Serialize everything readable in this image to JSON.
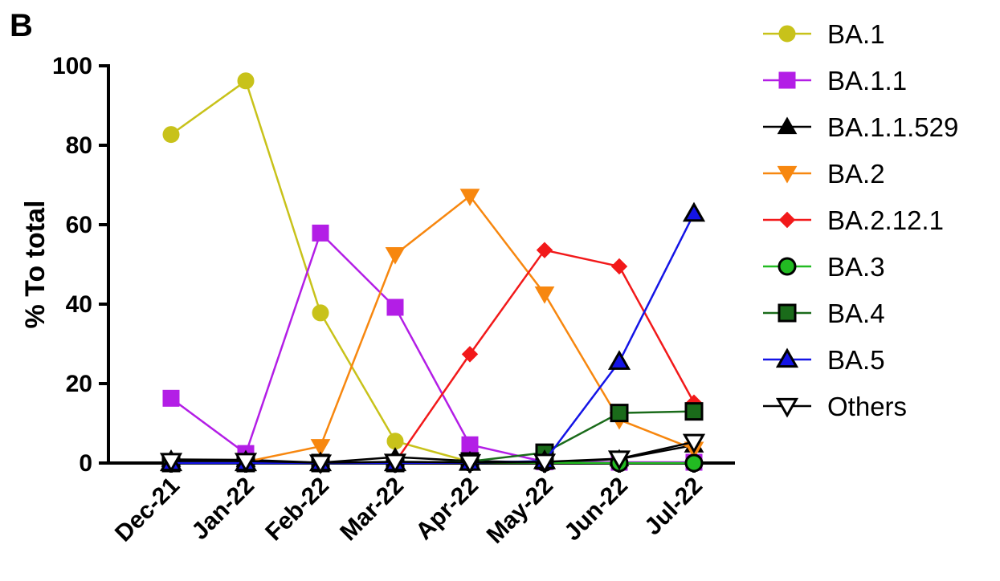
{
  "panel_label": "B",
  "chart_data": {
    "type": "line",
    "ylabel": "% To total",
    "xlabel": "",
    "ylim": [
      0,
      100
    ],
    "yticks": [
      0,
      20,
      40,
      60,
      80,
      100
    ],
    "categories": [
      "Dec-21",
      "Jan-22",
      "Feb-22",
      "Mar-22",
      "Apr-22",
      "May-22",
      "Jun-22",
      "Jul-22"
    ],
    "legend_position": "right",
    "series": [
      {
        "name": "BA.1",
        "color": "#c8c21a",
        "marker": "circle",
        "marker_fill": "#c8c21a",
        "marker_stroke": "#c8c21a",
        "values": [
          82.7,
          96.2,
          37.8,
          5.5,
          0.3,
          0.1,
          0.1,
          0.1
        ]
      },
      {
        "name": "BA.1.1",
        "color": "#b31ee6",
        "marker": "square",
        "marker_fill": "#b31ee6",
        "marker_stroke": "#b31ee6",
        "values": [
          16.3,
          2.4,
          57.9,
          39.2,
          4.6,
          0.3,
          0.2,
          0.2
        ]
      },
      {
        "name": "BA.1.1.529",
        "color": "#000000",
        "marker": "triangle-up",
        "marker_fill": "#000000",
        "marker_stroke": "#000000",
        "values": [
          0.9,
          0.8,
          0.1,
          1.5,
          0.5,
          0.2,
          1.0,
          4.5
        ]
      },
      {
        "name": "BA.2",
        "color": "#f7870f",
        "marker": "triangle-down",
        "marker_fill": "#f7870f",
        "marker_stroke": "#f7870f",
        "values": [
          0.2,
          0.3,
          4.2,
          52.5,
          67.2,
          42.6,
          10.9,
          3.5
        ]
      },
      {
        "name": "BA.2.12.1",
        "color": "#f2191a",
        "marker": "diamond",
        "marker_fill": "#f2191a",
        "marker_stroke": "#f2191a",
        "values": [
          0.0,
          0.0,
          0.0,
          0.2,
          27.4,
          53.6,
          49.5,
          15.2
        ]
      },
      {
        "name": "BA.3",
        "color": "#22bb22",
        "marker": "circle",
        "marker_fill": "#22bb22",
        "marker_stroke": "#000000",
        "values": [
          0.0,
          0.0,
          0.0,
          0.3,
          0.2,
          0.1,
          0.0,
          0.0
        ]
      },
      {
        "name": "BA.4",
        "color": "#1a6b1a",
        "marker": "square",
        "marker_fill": "#1a6b1a",
        "marker_stroke": "#000000",
        "values": [
          0.0,
          0.0,
          0.0,
          0.0,
          0.4,
          2.6,
          12.6,
          13.0
        ]
      },
      {
        "name": "BA.5",
        "color": "#1414e6",
        "marker": "triangle-up",
        "marker_fill": "#1414e6",
        "marker_stroke": "#000000",
        "values": [
          0.0,
          0.0,
          0.0,
          0.0,
          0.1,
          0.5,
          25.5,
          62.8
        ]
      },
      {
        "name": "Others",
        "color": "#000000",
        "marker": "triangle-down",
        "marker_fill": "#ffffff",
        "marker_stroke": "#000000",
        "values": [
          0.5,
          0.5,
          0.1,
          0.3,
          0.2,
          0.3,
          1.1,
          5.3
        ]
      }
    ]
  }
}
